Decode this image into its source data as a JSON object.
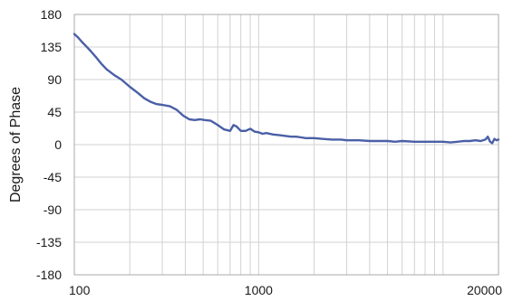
{
  "chart_data": {
    "type": "line",
    "title": "",
    "xlabel": "",
    "ylabel": "Degrees of Phase",
    "x_scale": "log",
    "xlim": [
      100,
      20000
    ],
    "ylim": [
      -180,
      180
    ],
    "x_ticks": [
      100,
      1000,
      20000
    ],
    "y_ticks": [
      180,
      135,
      90,
      45,
      0,
      -45,
      -90,
      -135,
      -180
    ],
    "grid": true,
    "colors": {
      "line": "#4a5fa6",
      "grid": "#d2d2d2",
      "frame": "#a8a8a8"
    },
    "series": [
      {
        "x": [
          100,
          105,
          110,
          116,
          122,
          130,
          140,
          150,
          165,
          180,
          200,
          220,
          240,
          260,
          280,
          300,
          330,
          360,
          390,
          420,
          450,
          480,
          510,
          550,
          600,
          650,
          700,
          730,
          760,
          800,
          850,
          900,
          950,
          1000,
          1050,
          1100,
          1200,
          1300,
          1400,
          1500,
          1600,
          1700,
          1800,
          2000,
          2200,
          2500,
          2800,
          3000,
          3500,
          4000,
          4500,
          5000,
          5500,
          6000,
          7000,
          8000,
          9000,
          10000,
          11000,
          12000,
          13000,
          14000,
          15000,
          16000,
          17000,
          17500,
          18000,
          18500,
          19000,
          19500,
          20000
        ],
        "values": [
          153,
          148,
          142,
          136,
          130,
          122,
          112,
          104,
          96,
          90,
          80,
          72,
          64,
          59,
          56,
          55,
          53,
          48,
          40,
          35,
          34,
          35,
          34,
          33,
          27,
          21,
          19,
          27,
          25,
          19,
          19,
          22,
          18,
          17,
          15,
          16,
          14,
          13,
          12,
          11,
          11,
          10,
          9,
          9,
          8,
          7,
          7,
          6,
          6,
          5,
          5,
          5,
          4,
          5,
          4,
          4,
          4,
          4,
          3,
          4,
          5,
          5,
          6,
          5,
          7,
          11,
          4,
          2,
          8,
          6,
          7
        ]
      }
    ]
  }
}
